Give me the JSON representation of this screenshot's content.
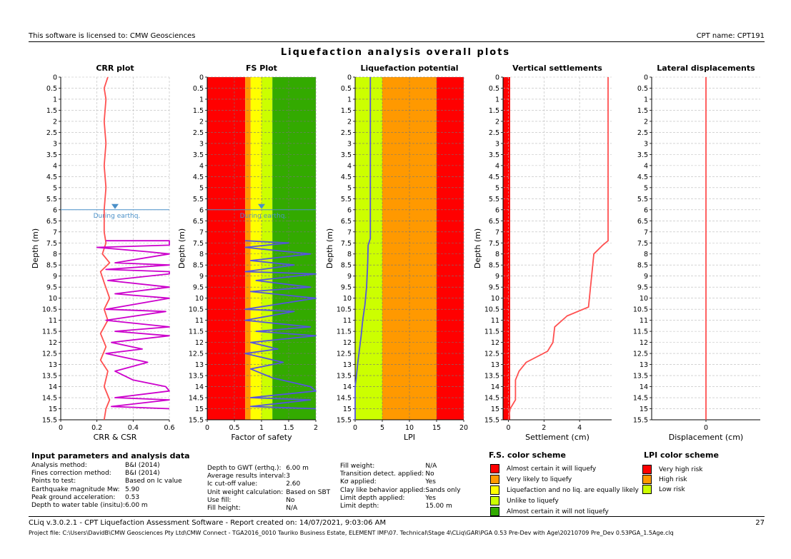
{
  "header": {
    "license": "This software is licensed to: CMW Geosciences",
    "cpt_name": "CPT name: CPT191",
    "main_title": "Liquefaction analysis overall plots"
  },
  "footer": {
    "software": "CLiq v.3.0.2.1 - CPT Liquefaction Assessment Software - Report created on: 14/07/2021, 9:03:06 AM",
    "page": "27",
    "project_file": "Project file: C:\\Users\\DavidB\\CMW Geosciences Pty Ltd\\CMW Connect - TGA2016_0010 Tauriko Business Estate, ELEMENT IMF\\07. Technical\\Stage 4\\CLiq\\GAR\\PGA 0.53 Pre-Dev with Age\\20210709 Pre_Dev 0.53PGA_1.5Age.clq"
  },
  "depth_ticks": [
    "0",
    "0.5",
    "1",
    "1.5",
    "2",
    "2.5",
    "3",
    "3.5",
    "4",
    "4.5",
    "5",
    "5.5",
    "6",
    "6.5",
    "7",
    "7.5",
    "8",
    "8.5",
    "9",
    "9.5",
    "10",
    "10.5",
    "11",
    "11.5",
    "12",
    "12.5",
    "13",
    "13.5",
    "14",
    "14.5",
    "15",
    "15.5"
  ],
  "colors": {
    "red": "#ff0000",
    "orange": "#ff9900",
    "yellow": "#ffff00",
    "lime": "#ccff00",
    "green": "#33aa00",
    "crr": "#ff5050",
    "csr": "#cc00cc",
    "fs": "#5555dd",
    "gwt": "#4a90c8"
  },
  "chart_data": [
    {
      "type": "line",
      "title": "CRR plot",
      "xlabel": "CRR & CSR",
      "ylabel": "Depth (m)",
      "xlim": [
        0,
        0.6
      ],
      "ylim": [
        15.5,
        0
      ],
      "x_ticks": [
        "0",
        "0.2",
        "0.4",
        "0.6"
      ],
      "gwt_label": "During earthq.",
      "gwt_depth": 6,
      "series": [
        {
          "color": "crr",
          "points": [
            [
              0.26,
              0
            ],
            [
              0.24,
              0.5
            ],
            [
              0.25,
              1
            ],
            [
              0.24,
              2
            ],
            [
              0.25,
              3
            ],
            [
              0.24,
              4
            ],
            [
              0.25,
              5
            ],
            [
              0.24,
              6
            ],
            [
              0.24,
              7
            ],
            [
              0.25,
              7.5
            ],
            [
              0.23,
              8
            ],
            [
              0.27,
              8.4
            ],
            [
              0.22,
              8.8
            ],
            [
              0.24,
              9.3
            ],
            [
              0.27,
              10
            ],
            [
              0.24,
              10.5
            ],
            [
              0.26,
              11
            ],
            [
              0.22,
              11.6
            ],
            [
              0.25,
              12.2
            ],
            [
              0.22,
              12.8
            ],
            [
              0.26,
              13.3
            ],
            [
              0.24,
              14
            ],
            [
              0.27,
              14.6
            ],
            [
              0.25,
              15
            ],
            [
              0.24,
              15.5
            ]
          ]
        },
        {
          "color": "csr",
          "points": [
            [
              0.25,
              7.4
            ],
            [
              0.6,
              7.4
            ],
            [
              0.6,
              7.6
            ],
            [
              0.2,
              7.7
            ],
            [
              0.48,
              7.9
            ],
            [
              0.6,
              8.0
            ],
            [
              0.3,
              8.4
            ],
            [
              0.6,
              8.5
            ],
            [
              0.25,
              8.7
            ],
            [
              0.6,
              8.8
            ],
            [
              0.6,
              8.9
            ],
            [
              0.26,
              9.2
            ],
            [
              0.6,
              9.5
            ],
            [
              0.3,
              9.8
            ],
            [
              0.6,
              10.0
            ],
            [
              0.25,
              10.5
            ],
            [
              0.58,
              10.6
            ],
            [
              0.25,
              11.0
            ],
            [
              0.6,
              11.3
            ],
            [
              0.3,
              11.5
            ],
            [
              0.6,
              11.7
            ],
            [
              0.28,
              12.0
            ],
            [
              0.45,
              12.3
            ],
            [
              0.25,
              12.5
            ],
            [
              0.48,
              12.9
            ],
            [
              0.3,
              13.3
            ],
            [
              0.4,
              13.7
            ],
            [
              0.58,
              14.0
            ],
            [
              0.6,
              14.2
            ],
            [
              0.3,
              14.5
            ],
            [
              0.6,
              14.6
            ],
            [
              0.28,
              14.9
            ],
            [
              0.6,
              15.0
            ]
          ]
        }
      ]
    },
    {
      "type": "line",
      "title": "FS Plot",
      "xlabel": "Factor of safety",
      "ylabel": "Depth (m)",
      "xlim": [
        0,
        2
      ],
      "ylim": [
        15.5,
        0
      ],
      "x_ticks": [
        "0",
        "0.5",
        "1",
        "1.5",
        "2"
      ],
      "gwt_label": "During earthq.",
      "gwt_depth": 6,
      "bands": [
        [
          0,
          0.7,
          "red"
        ],
        [
          0.7,
          0.8,
          "orange"
        ],
        [
          0.8,
          1.0,
          "yellow"
        ],
        [
          1.0,
          1.2,
          "lime"
        ],
        [
          1.2,
          2.0,
          "green"
        ]
      ],
      "series": [
        {
          "color": "fs",
          "points": [
            [
              0.7,
              7.4
            ],
            [
              1.5,
              7.5
            ],
            [
              0.7,
              7.7
            ],
            [
              1.9,
              8.0
            ],
            [
              0.8,
              8.3
            ],
            [
              1.6,
              8.5
            ],
            [
              0.7,
              8.8
            ],
            [
              2.0,
              8.9
            ],
            [
              0.9,
              9.2
            ],
            [
              1.9,
              9.5
            ],
            [
              0.8,
              9.7
            ],
            [
              2.0,
              10.0
            ],
            [
              0.7,
              10.5
            ],
            [
              1.6,
              10.6
            ],
            [
              0.7,
              11.0
            ],
            [
              1.9,
              11.3
            ],
            [
              0.9,
              11.5
            ],
            [
              2.0,
              11.7
            ],
            [
              0.8,
              12.0
            ],
            [
              1.3,
              12.3
            ],
            [
              0.7,
              12.5
            ],
            [
              1.4,
              12.9
            ],
            [
              0.8,
              13.2
            ],
            [
              1.2,
              13.6
            ],
            [
              1.9,
              14.0
            ],
            [
              2.0,
              14.2
            ],
            [
              0.8,
              14.5
            ],
            [
              1.9,
              14.6
            ],
            [
              0.8,
              14.9
            ],
            [
              2.0,
              15.0
            ]
          ]
        }
      ]
    },
    {
      "type": "line",
      "title": "Liquefaction potential",
      "xlabel": "LPI",
      "ylabel": "Depth (m)",
      "xlim": [
        0,
        20
      ],
      "ylim": [
        15.5,
        0
      ],
      "x_ticks": [
        "0",
        "5",
        "10",
        "15",
        "20"
      ],
      "bands": [
        [
          0,
          5,
          "lime"
        ],
        [
          5,
          15,
          "orange"
        ],
        [
          15,
          20,
          "red"
        ]
      ],
      "series": [
        {
          "color": "fs",
          "points": [
            [
              2.8,
              0
            ],
            [
              2.8,
              7.3
            ],
            [
              2.4,
              7.6
            ],
            [
              2.3,
              8.5
            ],
            [
              2.1,
              9.5
            ],
            [
              1.8,
              10.3
            ],
            [
              1.4,
              11.0
            ],
            [
              1.1,
              11.7
            ],
            [
              0.8,
              12.3
            ],
            [
              0.5,
              12.9
            ],
            [
              0.2,
              13.6
            ],
            [
              0.0,
              14.0
            ],
            [
              0,
              15.5
            ]
          ]
        }
      ]
    },
    {
      "type": "line",
      "title": "Vertical settlements",
      "xlabel": "Settlement (cm)",
      "ylabel": "Depth (m)",
      "xlim": [
        -0.3,
        5.8
      ],
      "ylim": [
        15.5,
        0
      ],
      "x_ticks": [
        "0",
        "2",
        "4"
      ],
      "x_tick_values": [
        0,
        2,
        4
      ],
      "bands": [
        [
          -0.3,
          0.1,
          "red"
        ]
      ],
      "series": [
        {
          "color": "crr",
          "points": [
            [
              5.6,
              0
            ],
            [
              5.6,
              7.4
            ],
            [
              5.3,
              7.6
            ],
            [
              4.8,
              8.0
            ],
            [
              4.7,
              8.8
            ],
            [
              4.6,
              9.6
            ],
            [
              4.5,
              10.4
            ],
            [
              3.3,
              10.8
            ],
            [
              2.6,
              11.3
            ],
            [
              2.5,
              12.0
            ],
            [
              2.2,
              12.4
            ],
            [
              1.0,
              12.9
            ],
            [
              0.6,
              13.3
            ],
            [
              0.4,
              13.7
            ],
            [
              0.4,
              14.6
            ],
            [
              0.1,
              15.0
            ],
            [
              0,
              15.5
            ]
          ]
        }
      ]
    },
    {
      "type": "line",
      "title": "Lateral displacements",
      "xlabel": "Displacement (cm)",
      "ylabel": "",
      "xlim": [
        -1,
        1
      ],
      "ylim": [
        15.5,
        0
      ],
      "x_ticks": [
        "0"
      ],
      "x_tick_values": [
        0
      ],
      "series": [
        {
          "color": "crr",
          "points": [
            [
              0,
              0
            ],
            [
              0,
              15.5
            ]
          ]
        }
      ]
    }
  ],
  "params": {
    "title": "Input parameters and analysis data",
    "col1": [
      [
        "Analysis method:",
        "B&I (2014)"
      ],
      [
        "Fines correction method:",
        "B&I (2014)"
      ],
      [
        "Points to test:",
        "Based on Ic value"
      ],
      [
        "Earthquake magnitude Mw:",
        "5.90"
      ],
      [
        "Peak ground acceleration:",
        "0.53"
      ],
      [
        "Depth to water table (insitu):",
        "6.00 m"
      ]
    ],
    "col2": [
      [
        "Depth to GWT (erthq.):",
        "6.00 m"
      ],
      [
        "Average results interval:",
        "3"
      ],
      [
        "Ic cut-off value:",
        "2.60"
      ],
      [
        "Unit weight calculation:",
        "Based on SBT"
      ],
      [
        "Use fill:",
        "No"
      ],
      [
        "Fill height:",
        "N/A"
      ]
    ],
    "col3": [
      [
        "Fill weight:",
        "N/A"
      ],
      [
        "Transition detect. applied:",
        "No"
      ],
      [
        "Kσ applied:",
        "Yes"
      ],
      [
        "Clay like behavior applied:",
        "Sands only"
      ],
      [
        "Limit depth applied:",
        "Yes"
      ],
      [
        "Limit depth:",
        "15.00 m"
      ]
    ]
  },
  "fs_scheme": {
    "title": "F.S. color scheme",
    "items": [
      {
        "color": "red",
        "label": "Almost certain it will liquefy"
      },
      {
        "color": "orange",
        "label": "Very likely to liquefy"
      },
      {
        "color": "yellow",
        "label": "Liquefaction and no liq. are equally likely"
      },
      {
        "color": "lime",
        "label": "Unlike to liquefy"
      },
      {
        "color": "green",
        "label": "Almost certain it will not liquefy"
      }
    ]
  },
  "lpi_scheme": {
    "title": "LPI color scheme",
    "items": [
      {
        "color": "red",
        "label": "Very high risk"
      },
      {
        "color": "orange",
        "label": "High risk"
      },
      {
        "color": "lime",
        "label": "Low risk"
      }
    ]
  }
}
